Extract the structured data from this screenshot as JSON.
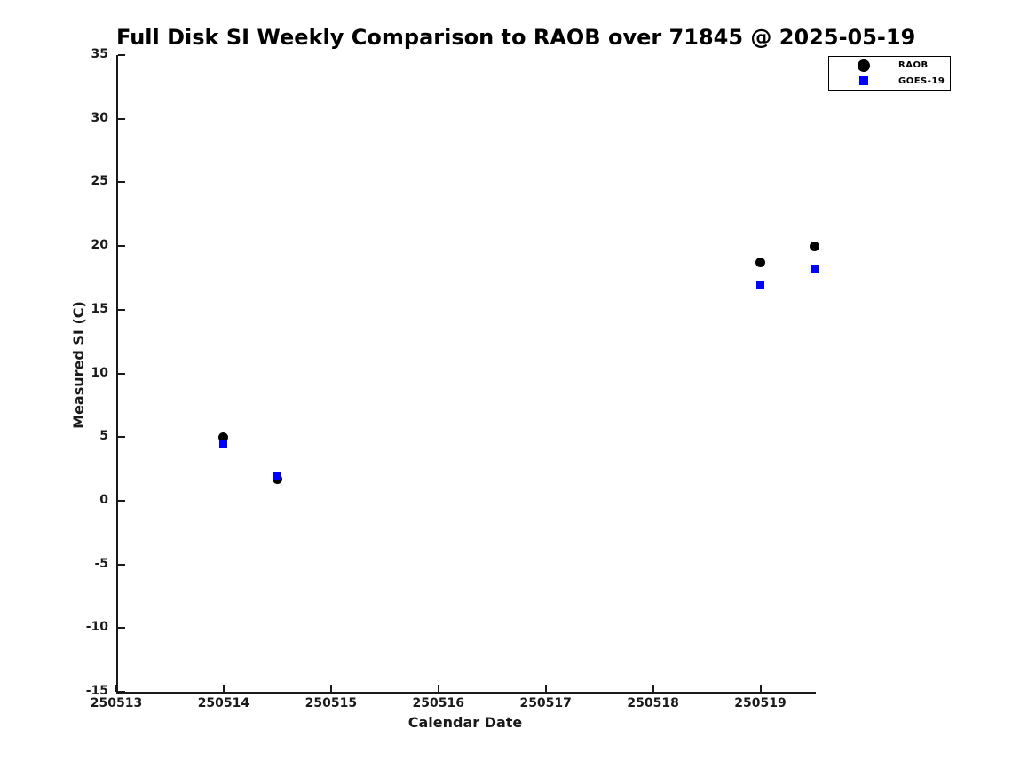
{
  "chart_data": {
    "type": "scatter",
    "title": "Full Disk SI Weekly Comparison to RAOB over 71845 @ 2025-05-19",
    "xlabel": "Calendar Date",
    "ylabel": "Measured SI (C)",
    "xlim": [
      250513,
      250519.5
    ],
    "ylim": [
      -15,
      35
    ],
    "xticks": [
      250513,
      250514,
      250515,
      250516,
      250517,
      250518,
      250519
    ],
    "yticks": [
      -15,
      -10,
      -5,
      0,
      5,
      10,
      15,
      20,
      25,
      30,
      35
    ],
    "grid": false,
    "legend_position": "upper-right",
    "background_color": "#ffffff",
    "axis_color": "#1a1a1a",
    "series": [
      {
        "name": "RAOB",
        "marker": "circle",
        "color": "#000000",
        "points": [
          [
            250514.0,
            5.0
          ],
          [
            250514.5,
            1.7
          ],
          [
            250519.0,
            18.7
          ],
          [
            250519.5,
            20.0
          ]
        ]
      },
      {
        "name": "GOES-19",
        "marker": "square",
        "color": "#0000ff",
        "points": [
          [
            250514.0,
            4.4
          ],
          [
            250514.5,
            1.9
          ],
          [
            250519.0,
            17.0
          ],
          [
            250519.5,
            18.2
          ]
        ]
      }
    ]
  }
}
